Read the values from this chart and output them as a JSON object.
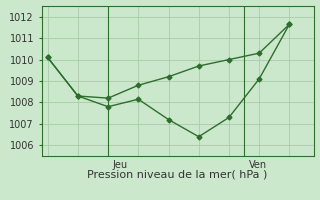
{
  "xlabel": "Pression niveau de la mer( hPa )",
  "bg_color": "#cce8cc",
  "line_color": "#2d6e2d",
  "grid_color": "#aaccaa",
  "ylim": [
    1005.5,
    1012.5
  ],
  "yticks": [
    1006,
    1007,
    1008,
    1009,
    1010,
    1011,
    1012
  ],
  "x_jeu": 2.0,
  "x_ven": 6.5,
  "xlim": [
    -0.2,
    8.8
  ],
  "line1_x": [
    0,
    1,
    2,
    3,
    4,
    5,
    6,
    7,
    8
  ],
  "line1_y": [
    1010.1,
    1008.3,
    1008.2,
    1008.8,
    1009.2,
    1009.7,
    1010.0,
    1010.3,
    1011.65
  ],
  "line2_x": [
    0,
    1,
    2,
    3,
    4,
    5,
    6,
    7,
    8
  ],
  "line2_y": [
    1010.1,
    1008.3,
    1007.8,
    1008.15,
    1007.2,
    1006.4,
    1007.3,
    1009.1,
    1011.65
  ],
  "xtick_jeu_pos": 2.0,
  "xtick_ven_pos": 6.5,
  "ylabel_fontsize": 7,
  "xlabel_fontsize": 8,
  "tick_label_fontsize": 7
}
